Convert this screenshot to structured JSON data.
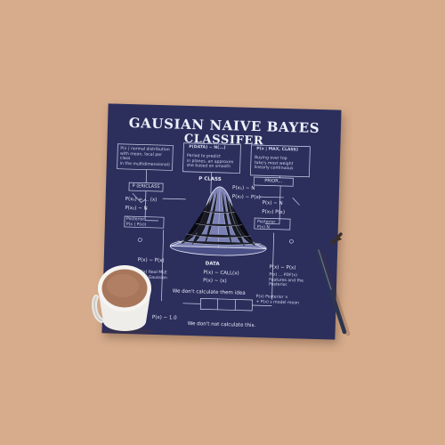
{
  "poster": {
    "title_line1": "GAUSIAN NAIVE BAYES",
    "title_line2": "CLASSIFER",
    "notes": {
      "top_left": "P(x | normal distribution\nwith mean, local per class\nin the multidimensional)",
      "top_center_head": "P(DATA) ~ N(...)",
      "top_center_body": "Period to predict\nin planes, an approxim\nshe based on smooth",
      "top_right_head": "P(x | MAX, CLASS)",
      "top_right_body": "Buying over top\ntake's most weight\nlinearly continuous",
      "mid_left_box": "P (ERICLASS",
      "mid_left_a": "P(x₁) = ... (x)",
      "mid_left_b": "P(x₂) ~ N",
      "mid_left_c": "Posterior\nP(x | P(x))",
      "mid_center_head": "P CLASS",
      "mid_center_a": "P(x₁) ~ N",
      "mid_center_b": "P(x₂) ~ P(x)",
      "mid_right_box": "PRIOR...",
      "mid_right_a": "P(x) ~ N",
      "mid_right_b": "P(x₂) P(x)",
      "mid_right_c": "Posterior\nP(x) N",
      "lower_left_a": "P(x) ~ P(x)",
      "lower_left_b": "P(x) Real MLE\nP(x) Gaussian",
      "data_label": "DATA",
      "lower_center_a": "P(x) ~ CALL(x)",
      "lower_center_b": "P(x) ~ (x)",
      "lower_right_a": "P(x) ~ P(x)",
      "lower_right_b": "P(x) ... PDF(x)\nFeatures and the\nPosterior.",
      "middle_caption": "We don't calculate them idea",
      "bottom_left": "P(x) ~ 1.0",
      "bottom_right": "P(x) Posterior ×\n+ P(x) s model mean",
      "bottom_caption": "We don't not calculate this."
    }
  }
}
